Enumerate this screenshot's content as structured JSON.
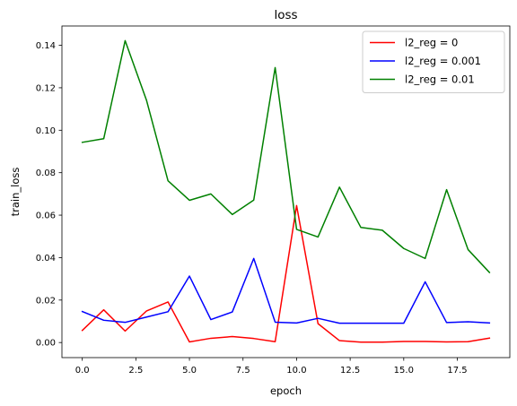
{
  "chart_data": {
    "type": "line",
    "title": "loss",
    "xlabel": "epoch",
    "ylabel": "train_loss",
    "xlim": [
      -0.95,
      19.95
    ],
    "ylim": [
      -0.0071,
      0.1491
    ],
    "xticks": [
      0,
      2.5,
      5,
      7.5,
      10,
      12.5,
      15,
      17.5
    ],
    "xtick_labels": [
      "0.0",
      "2.5",
      "5.0",
      "7.5",
      "10.0",
      "12.5",
      "15.0",
      "17.5"
    ],
    "yticks": [
      0,
      0.02,
      0.04,
      0.06,
      0.08,
      0.1,
      0.12,
      0.14
    ],
    "ytick_labels": [
      "0.00",
      "0.02",
      "0.04",
      "0.06",
      "0.08",
      "0.10",
      "0.12",
      "0.14"
    ],
    "grid": false,
    "legend_position": "top-right",
    "x": [
      0,
      1,
      2,
      3,
      4,
      5,
      6,
      7,
      8,
      9,
      10,
      11,
      12,
      13,
      14,
      15,
      16,
      17,
      18,
      19
    ],
    "series": [
      {
        "name": "l2_reg = 0",
        "color": "#ff0000",
        "values": [
          0.0057,
          0.0154,
          0.0054,
          0.0149,
          0.0191,
          0.0003,
          0.002,
          0.0028,
          0.0019,
          0.0004,
          0.0645,
          0.0089,
          0.0009,
          0.0002,
          0.0002,
          0.0005,
          0.0005,
          0.0003,
          0.0004,
          0.0021
        ]
      },
      {
        "name": "l2_reg = 0.001",
        "color": "#0000ff",
        "values": [
          0.0146,
          0.0105,
          0.0095,
          0.012,
          0.0145,
          0.0313,
          0.0108,
          0.0144,
          0.0396,
          0.0096,
          0.0092,
          0.0114,
          0.0091,
          0.0091,
          0.0091,
          0.0091,
          0.0286,
          0.0094,
          0.0098,
          0.0092
        ]
      },
      {
        "name": "l2_reg = 0.01",
        "color": "#008000",
        "values": [
          0.0943,
          0.096,
          0.1422,
          0.114,
          0.0762,
          0.067,
          0.07,
          0.0603,
          0.0671,
          0.1295,
          0.0533,
          0.0497,
          0.0732,
          0.0542,
          0.0529,
          0.0443,
          0.0396,
          0.072,
          0.0438,
          0.033
        ]
      }
    ]
  }
}
